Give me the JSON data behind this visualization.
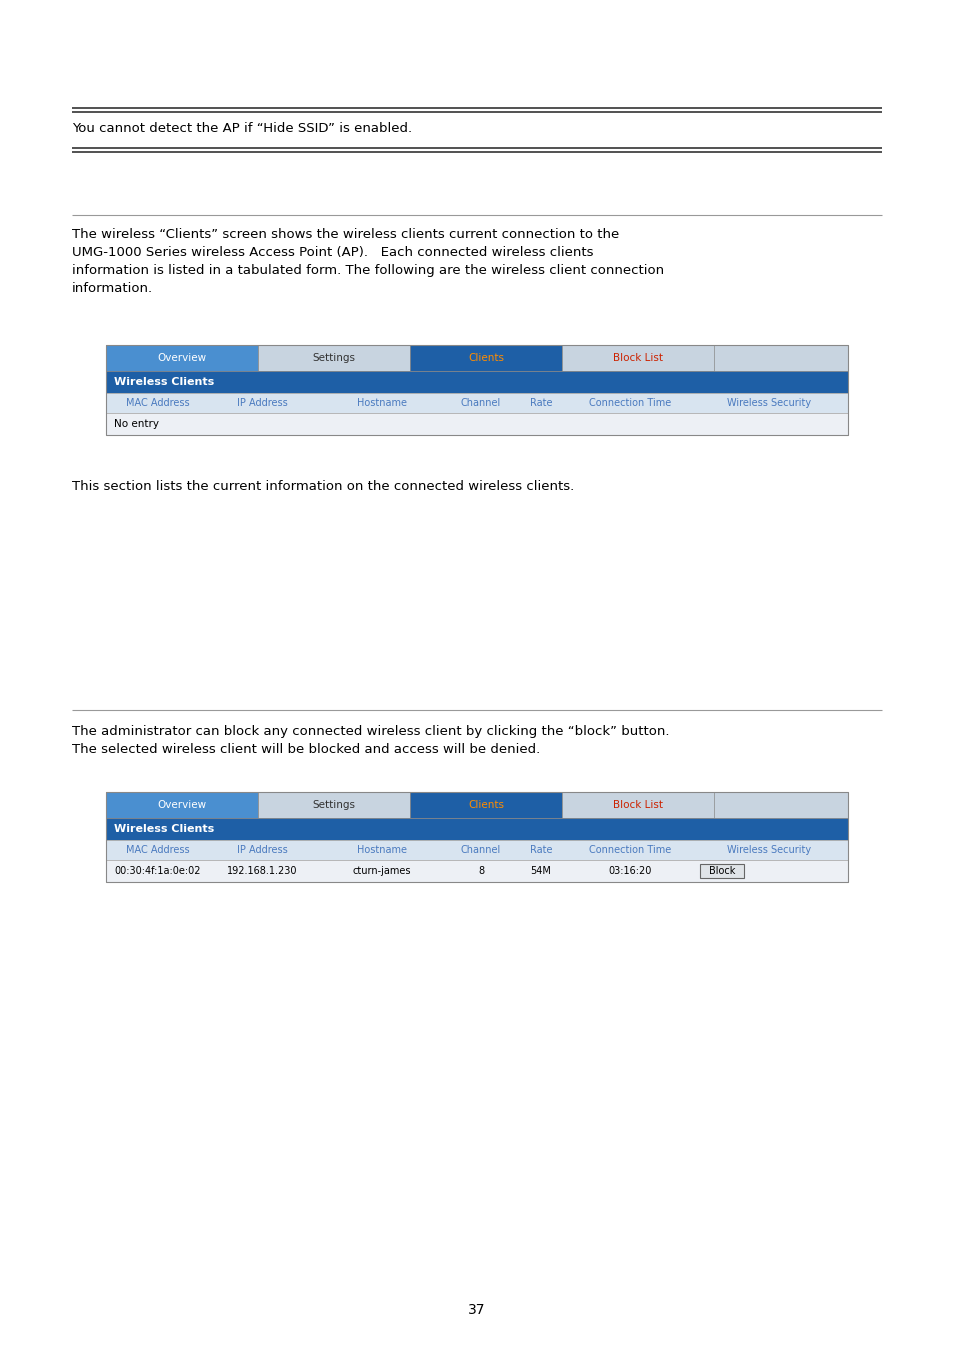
{
  "bg_color": "#ffffff",
  "note_text": "You cannot detect the AP if “Hide SSID” is enabled.",
  "para1_lines": [
    "The wireless “Clients” screen shows the wireless clients current connection to the",
    "UMG-1000 Series wireless Access Point (AP).   Each connected wireless clients",
    "information is listed in a tabulated form. The following are the wireless client connection",
    "information."
  ],
  "para2": "This section lists the current information on the connected wireless clients.",
  "para3_lines": [
    "The administrator can block any connected wireless client by clicking the “block” button.",
    "The selected wireless client will be blocked and access will be denied."
  ],
  "page_number": "37",
  "tab_nav": [
    "Overview",
    "Settings",
    "Clients",
    "Block List"
  ],
  "table1_header": [
    "MAC Address",
    "IP Address",
    "Hostname",
    "Channel",
    "Rate",
    "Connection Time",
    "Wireless Security"
  ],
  "table2_data": [
    "00:30:4f:1a:0e:02",
    "192.168.1.230",
    "cturn-james",
    "8",
    "54M",
    "03:16:20",
    "Block"
  ],
  "header_bg": "#1e5fa6",
  "tab_active_bg": "#1e5fa6",
  "tab_overview_bg": "#4a8fd0",
  "tab_other_bg": "#c8d4e0",
  "col_header_bg": "#d8e4f0",
  "row_bg": "#e8ecf0",
  "separator_color": "#333333",
  "thin_sep_color": "#999999",
  "body_text_color": "#000000",
  "col_header_text": "#4a7abf",
  "tab_active_text": "#ff8c00",
  "tab_blocklist_text": "#cc2200",
  "tab_overview_text": "#ffffff",
  "tab_settings_text": "#333333"
}
